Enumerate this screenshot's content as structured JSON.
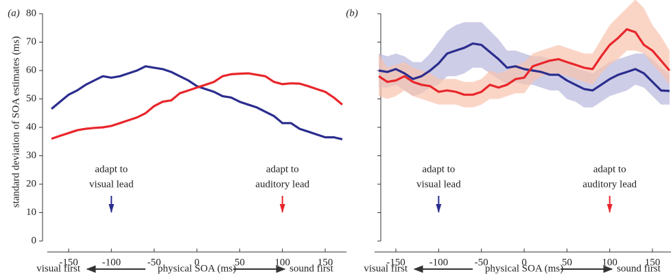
{
  "chart_data": [
    {
      "type": "line",
      "panel_label": "(a)",
      "ylabel": "standard deviation of SOA estimates (ms)",
      "xlabel": "physical SOA (ms)",
      "xlabel_left": "visual first",
      "xlabel_right": "sound first",
      "xlim": [
        -175,
        175
      ],
      "ylim": [
        0,
        80
      ],
      "xticks": [
        -150,
        -100,
        -50,
        0,
        50,
        100,
        150
      ],
      "yticks": [
        0,
        10,
        20,
        30,
        40,
        50,
        60,
        70,
        80
      ],
      "show_ytick_labels": true,
      "x": [
        -170,
        -160,
        -150,
        -140,
        -130,
        -120,
        -110,
        -100,
        -90,
        -80,
        -70,
        -60,
        -50,
        -40,
        -30,
        -20,
        -10,
        0,
        10,
        20,
        30,
        40,
        50,
        60,
        70,
        80,
        90,
        100,
        110,
        120,
        130,
        140,
        150,
        160,
        170
      ],
      "series": [
        {
          "color": "#2b2d8e",
          "values": [
            46.5,
            49,
            51.5,
            53,
            55,
            56.5,
            58,
            57.5,
            58,
            59,
            60,
            61.5,
            61,
            60.5,
            59.5,
            58,
            56.5,
            54.5,
            53.5,
            52.5,
            51,
            50.5,
            49,
            48,
            47,
            45.5,
            44,
            41.5,
            41.5,
            39.5,
            38.5,
            37.5,
            36.5,
            36.5,
            35.8
          ]
        },
        {
          "color": "#e8262b",
          "values": [
            36,
            37,
            38,
            39,
            39.5,
            39.8,
            40,
            40.5,
            41.5,
            42.5,
            43.5,
            45,
            47.5,
            49,
            49.5,
            52,
            53,
            54,
            55,
            56,
            58,
            58.7,
            58.9,
            59,
            58.5,
            58,
            56,
            55.2,
            55.5,
            55.4,
            54.5,
            53.5,
            52.5,
            50.5,
            48
          ]
        }
      ],
      "annotations": [
        {
          "lines": [
            "adapt to",
            "visual lead"
          ],
          "x": -100,
          "color": "#2b2d8e"
        },
        {
          "lines": [
            "adapt to",
            "auditory lead"
          ],
          "x": 100,
          "color": "#e8262b"
        }
      ]
    },
    {
      "type": "band-line",
      "panel_label": "(b)",
      "xlabel": "physical SOA (ms)",
      "xlabel_left": "visual first",
      "xlabel_right": "sound first",
      "xlim": [
        -175,
        175
      ],
      "ylim": [
        0,
        80
      ],
      "xticks": [
        -150,
        -100,
        -50,
        0,
        50,
        100,
        150
      ],
      "yticks": [
        0,
        10,
        20,
        30,
        40,
        50,
        60,
        70,
        80
      ],
      "show_ytick_labels": false,
      "x": [
        -170,
        -160,
        -150,
        -140,
        -130,
        -120,
        -110,
        -100,
        -90,
        -80,
        -70,
        -60,
        -50,
        -40,
        -30,
        -20,
        -10,
        0,
        10,
        20,
        30,
        40,
        50,
        60,
        70,
        80,
        90,
        100,
        110,
        120,
        130,
        140,
        150,
        160,
        170
      ],
      "series": [
        {
          "color": "#2b2d8e",
          "band_color": "#b9b8dd",
          "values": [
            60,
            59.5,
            60.5,
            59,
            57,
            58,
            60,
            62.5,
            66,
            67,
            68,
            69.5,
            69,
            66.5,
            64,
            61,
            61.5,
            60.5,
            60,
            59.5,
            58.5,
            58.5,
            56.5,
            55,
            53.5,
            53,
            55,
            57,
            58.5,
            59.5,
            60.5,
            59,
            56,
            53,
            52.8
          ],
          "upper": [
            66,
            65,
            66,
            65,
            63,
            63,
            66,
            70,
            74,
            76,
            77,
            77,
            77,
            74,
            71,
            67,
            67,
            66,
            65,
            65,
            64,
            64,
            63,
            61,
            60,
            59,
            61,
            63,
            64,
            65,
            66,
            66,
            64,
            61,
            59
          ],
          "lower": [
            54,
            54,
            55,
            53,
            51,
            52,
            54,
            55,
            58,
            58,
            59,
            61,
            61,
            59,
            57,
            55,
            56,
            55,
            55,
            54,
            53,
            53,
            50,
            49,
            47,
            47,
            49,
            51,
            52,
            53,
            55,
            54,
            51,
            48,
            48
          ]
        },
        {
          "color": "#e8262b",
          "band_color": "#f8c3ae",
          "values": [
            58,
            56,
            56.5,
            58,
            56,
            55,
            54.5,
            52.5,
            53,
            52.5,
            51.5,
            51.5,
            52.5,
            55,
            54,
            55,
            57,
            57.5,
            61.5,
            62.5,
            63.5,
            64,
            63,
            62,
            61,
            60.5,
            65,
            69,
            71.5,
            74.5,
            73.5,
            69,
            67,
            63.5,
            60
          ],
          "upper": [
            66,
            61,
            62,
            63,
            61,
            60,
            59,
            57,
            57,
            57,
            56,
            56,
            57,
            60,
            59,
            60,
            62,
            63,
            66,
            67,
            68,
            69,
            68,
            67,
            66,
            66,
            71,
            76,
            79,
            82,
            85,
            82,
            76,
            72,
            67
          ],
          "lower": [
            51,
            50,
            51,
            53,
            51,
            50,
            49,
            48,
            48,
            48,
            47,
            47,
            48,
            50,
            50,
            51,
            52,
            52,
            56,
            58,
            59,
            59,
            58,
            57,
            56,
            55,
            59,
            62,
            64,
            67,
            67,
            66,
            62,
            59,
            55
          ]
        }
      ],
      "annotations": [
        {
          "lines": [
            "adapt to",
            "visual lead"
          ],
          "x": -100,
          "color": "#2b2d8e"
        },
        {
          "lines": [
            "adapt to",
            "auditory lead"
          ],
          "x": 100,
          "color": "#e8262b"
        }
      ]
    }
  ]
}
